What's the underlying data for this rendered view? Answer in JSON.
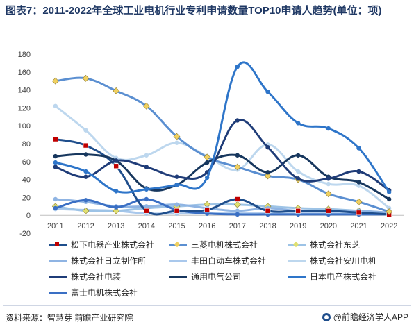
{
  "title": "图表7：2011-2022年全球工业电机行业专利申请数量TOP10申请人趋势(单位：项)",
  "source": "资料来源：智慧芽 前瞻产业研究院",
  "brand": "@前瞻经济学人APP",
  "chart_data": {
    "type": "line",
    "categories": [
      "2011",
      "2012",
      "2013",
      "2014",
      "2015",
      "2016",
      "2017",
      "2018",
      "2019",
      "2020",
      "2021",
      "2022"
    ],
    "ylim": [
      -20,
      180
    ],
    "yticks": [
      -20,
      0,
      20,
      40,
      60,
      80,
      100,
      120,
      140,
      160,
      180
    ],
    "series": [
      {
        "name": "松下电器产业株式会社",
        "color": "#1f4e8c",
        "marker": "square",
        "markerColor": "#c00000",
        "values": [
          85,
          78,
          55,
          5,
          5,
          6,
          18,
          5,
          5,
          5,
          3,
          1
        ]
      },
      {
        "name": "三菱电机株式会社",
        "color": "#5b8fd1",
        "marker": "diamond",
        "markerColor": "#f0d060",
        "values": [
          150,
          153,
          139,
          122,
          88,
          65,
          54,
          44,
          40,
          24,
          15,
          4
        ]
      },
      {
        "name": "株式会社东芝",
        "color": "#9dc3e6",
        "marker": "diamond",
        "markerColor": "#e0e070",
        "values": [
          10,
          5,
          5,
          8,
          10,
          12,
          12,
          10,
          8,
          7,
          5,
          3
        ]
      },
      {
        "name": "株式会社日立制作所",
        "color": "#8fb4e3",
        "marker": "circle",
        "markerColor": "#8fb4e3",
        "values": [
          18,
          15,
          10,
          10,
          12,
          8,
          5,
          8,
          5,
          5,
          5,
          3
        ]
      },
      {
        "name": "丰田自动车株式会社",
        "color": "#a9c8ec",
        "marker": "circle",
        "markerColor": "#a9c8ec",
        "values": [
          7,
          6,
          5,
          2,
          2,
          2,
          2,
          2,
          2,
          2,
          2,
          1
        ]
      },
      {
        "name": "株式会社安川电机",
        "color": "#bdd7ee",
        "marker": "circle",
        "markerColor": "#bdd7ee",
        "values": [
          122,
          95,
          64,
          67,
          81,
          66,
          51,
          79,
          49,
          35,
          33,
          8
        ]
      },
      {
        "name": "株式会社电装",
        "color": "#1f3c78",
        "marker": "circle",
        "markerColor": "#1f3c78",
        "values": [
          54,
          43,
          61,
          54,
          43,
          48,
          106,
          76,
          41,
          41,
          49,
          28
        ]
      },
      {
        "name": "通用电气公司",
        "color": "#17375e",
        "marker": "circle",
        "markerColor": "#17375e",
        "values": [
          66,
          68,
          61,
          30,
          34,
          59,
          67,
          48,
          67,
          43,
          37,
          18
        ]
      },
      {
        "name": "日本电产株式会社",
        "color": "#2e75c9",
        "marker": "circle",
        "markerColor": "#2e75c9",
        "values": [
          59,
          49,
          27,
          29,
          34,
          42,
          166,
          138,
          103,
          97,
          75,
          26
        ]
      },
      {
        "name": "富士电机株式会社",
        "color": "#3a6fc4",
        "marker": "circle",
        "markerColor": "#3a6fc4",
        "values": [
          8,
          17,
          9,
          18,
          6,
          2,
          1,
          1,
          1,
          1,
          1,
          1
        ]
      }
    ]
  }
}
